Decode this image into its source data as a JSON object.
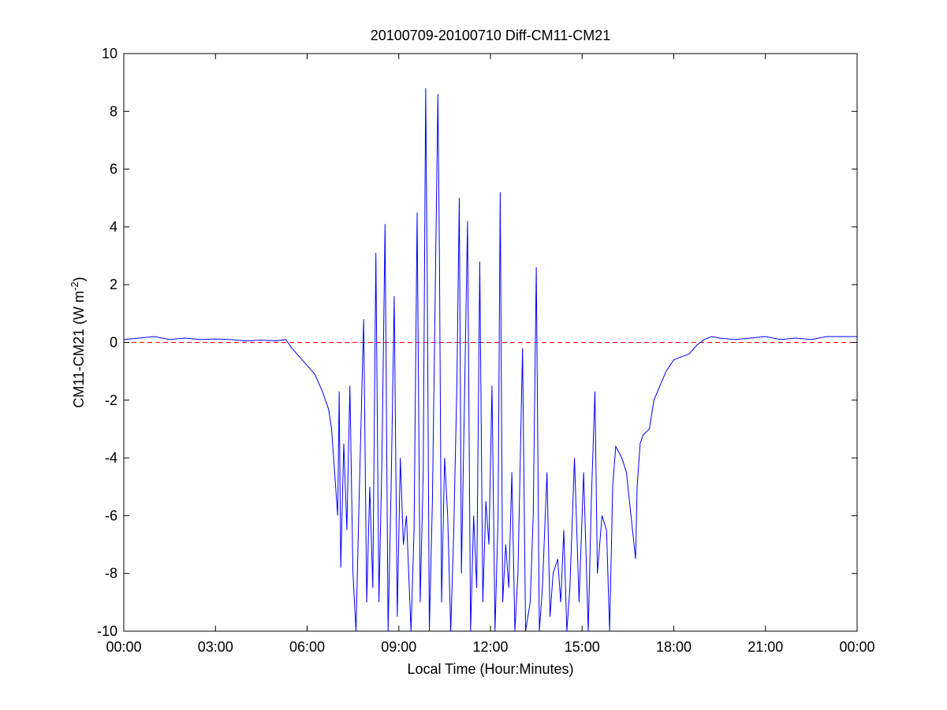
{
  "chart_data": {
    "type": "line",
    "title": "20100709-20100710 Diff-CM11-CM21",
    "xlabel": "Local Time (Hour:Minutes)",
    "ylabel": {
      "prefix": "CM11-CM21 (W m",
      "superscript": "-2",
      "suffix": ")"
    },
    "xlim": [
      0,
      24
    ],
    "ylim": [
      -10,
      10
    ],
    "x_ticks": [
      {
        "value": 0,
        "label": "00:00"
      },
      {
        "value": 3,
        "label": "03:00"
      },
      {
        "value": 6,
        "label": "06:00"
      },
      {
        "value": 9,
        "label": "09:00"
      },
      {
        "value": 12,
        "label": "12:00"
      },
      {
        "value": 15,
        "label": "15:00"
      },
      {
        "value": 18,
        "label": "18:00"
      },
      {
        "value": 21,
        "label": "21:00"
      },
      {
        "value": 24,
        "label": "00:00"
      }
    ],
    "y_ticks": [
      {
        "value": 10,
        "label": "10"
      },
      {
        "value": 8,
        "label": "8"
      },
      {
        "value": 6,
        "label": "6"
      },
      {
        "value": 4,
        "label": "4"
      },
      {
        "value": 2,
        "label": "2"
      },
      {
        "value": 0,
        "label": "0"
      },
      {
        "value": -2,
        "label": "-2"
      },
      {
        "value": -4,
        "label": "-4"
      },
      {
        "value": -6,
        "label": "-6"
      },
      {
        "value": -8,
        "label": "-8"
      },
      {
        "value": -10,
        "label": "-10"
      }
    ],
    "grid": false,
    "reference_line": {
      "y": 0,
      "color": "#ff0000",
      "style": "dashed"
    },
    "series": [
      {
        "color": "#0000ff",
        "points": [
          [
            0.0,
            0.1
          ],
          [
            0.5,
            0.15
          ],
          [
            1.0,
            0.2
          ],
          [
            1.5,
            0.1
          ],
          [
            2.0,
            0.15
          ],
          [
            2.5,
            0.1
          ],
          [
            3.0,
            0.12
          ],
          [
            3.5,
            0.1
          ],
          [
            4.0,
            0.05
          ],
          [
            4.5,
            0.08
          ],
          [
            5.0,
            0.05
          ],
          [
            5.3,
            0.1
          ],
          [
            5.5,
            -0.2
          ],
          [
            5.75,
            -0.5
          ],
          [
            6.0,
            -0.8
          ],
          [
            6.25,
            -1.1
          ],
          [
            6.5,
            -1.7
          ],
          [
            6.7,
            -2.3
          ],
          [
            6.8,
            -3.0
          ],
          [
            6.9,
            -4.5
          ],
          [
            7.0,
            -6.0
          ],
          [
            7.05,
            -1.7
          ],
          [
            7.1,
            -7.8
          ],
          [
            7.2,
            -3.5
          ],
          [
            7.3,
            -6.5
          ],
          [
            7.4,
            -1.5
          ],
          [
            7.5,
            -8.0
          ],
          [
            7.6,
            -10.0
          ],
          [
            7.7,
            -5.5
          ],
          [
            7.85,
            0.8
          ],
          [
            7.95,
            -9.0
          ],
          [
            8.05,
            -5.0
          ],
          [
            8.15,
            -8.5
          ],
          [
            8.25,
            3.1
          ],
          [
            8.35,
            -9.0
          ],
          [
            8.45,
            -4.0
          ],
          [
            8.55,
            4.1
          ],
          [
            8.65,
            -10.0
          ],
          [
            8.75,
            -5.0
          ],
          [
            8.85,
            1.6
          ],
          [
            8.95,
            -9.5
          ],
          [
            9.05,
            -4.0
          ],
          [
            9.15,
            -7.0
          ],
          [
            9.25,
            -6.0
          ],
          [
            9.4,
            -10.0
          ],
          [
            9.5,
            -6.5
          ],
          [
            9.6,
            4.5
          ],
          [
            9.7,
            -9.0
          ],
          [
            9.8,
            -4.5
          ],
          [
            9.88,
            8.8
          ],
          [
            9.93,
            2.4
          ],
          [
            10.0,
            -10.0
          ],
          [
            10.1,
            -5.5
          ],
          [
            10.2,
            2.3
          ],
          [
            10.28,
            8.6
          ],
          [
            10.33,
            3.1
          ],
          [
            10.4,
            -9.0
          ],
          [
            10.5,
            -4.0
          ],
          [
            10.6,
            -6.0
          ],
          [
            10.7,
            -10.0
          ],
          [
            10.8,
            -6.5
          ],
          [
            10.9,
            -1.5
          ],
          [
            10.98,
            5.0
          ],
          [
            11.05,
            -8.0
          ],
          [
            11.15,
            -2.0
          ],
          [
            11.25,
            4.2
          ],
          [
            11.35,
            -10.0
          ],
          [
            11.45,
            -6.0
          ],
          [
            11.55,
            -8.5
          ],
          [
            11.65,
            2.8
          ],
          [
            11.75,
            -9.0
          ],
          [
            11.85,
            -5.5
          ],
          [
            11.95,
            -7.0
          ],
          [
            12.05,
            -1.5
          ],
          [
            12.15,
            -10.0
          ],
          [
            12.25,
            -6.0
          ],
          [
            12.32,
            5.2
          ],
          [
            12.4,
            -9.0
          ],
          [
            12.5,
            -7.0
          ],
          [
            12.6,
            -8.5
          ],
          [
            12.7,
            -4.5
          ],
          [
            12.8,
            -10.0
          ],
          [
            12.9,
            -8.0
          ],
          [
            13.05,
            -0.2
          ],
          [
            13.15,
            -10.0
          ],
          [
            13.3,
            -9.0
          ],
          [
            13.4,
            -6.0
          ],
          [
            13.5,
            2.6
          ],
          [
            13.6,
            -10.0
          ],
          [
            13.7,
            -8.5
          ],
          [
            13.85,
            -4.5
          ],
          [
            13.95,
            -9.5
          ],
          [
            14.05,
            -8.0
          ],
          [
            14.2,
            -7.5
          ],
          [
            14.3,
            -9.0
          ],
          [
            14.4,
            -6.5
          ],
          [
            14.5,
            -10.0
          ],
          [
            14.6,
            -8.5
          ],
          [
            14.75,
            -4.0
          ],
          [
            14.9,
            -9.0
          ],
          [
            15.05,
            -4.5
          ],
          [
            15.2,
            -10.0
          ],
          [
            15.3,
            -5.5
          ],
          [
            15.42,
            -1.7
          ],
          [
            15.5,
            -8.0
          ],
          [
            15.65,
            -6.0
          ],
          [
            15.8,
            -6.5
          ],
          [
            15.9,
            -10.0
          ],
          [
            16.0,
            -5.0
          ],
          [
            16.1,
            -3.6
          ],
          [
            16.3,
            -4.0
          ],
          [
            16.45,
            -4.5
          ],
          [
            16.6,
            -6.0
          ],
          [
            16.75,
            -7.5
          ],
          [
            16.8,
            -5.0
          ],
          [
            16.9,
            -3.5
          ],
          [
            17.0,
            -3.2
          ],
          [
            17.2,
            -3.0
          ],
          [
            17.35,
            -2.0
          ],
          [
            17.55,
            -1.5
          ],
          [
            17.75,
            -1.0
          ],
          [
            18.0,
            -0.6
          ],
          [
            18.25,
            -0.5
          ],
          [
            18.5,
            -0.4
          ],
          [
            18.75,
            -0.1
          ],
          [
            19.0,
            0.1
          ],
          [
            19.25,
            0.2
          ],
          [
            19.5,
            0.15
          ],
          [
            20.0,
            0.1
          ],
          [
            20.5,
            0.15
          ],
          [
            21.0,
            0.2
          ],
          [
            21.5,
            0.1
          ],
          [
            22.0,
            0.15
          ],
          [
            22.5,
            0.1
          ],
          [
            23.0,
            0.2
          ],
          [
            23.5,
            0.2
          ],
          [
            24.0,
            0.2
          ]
        ]
      }
    ]
  }
}
